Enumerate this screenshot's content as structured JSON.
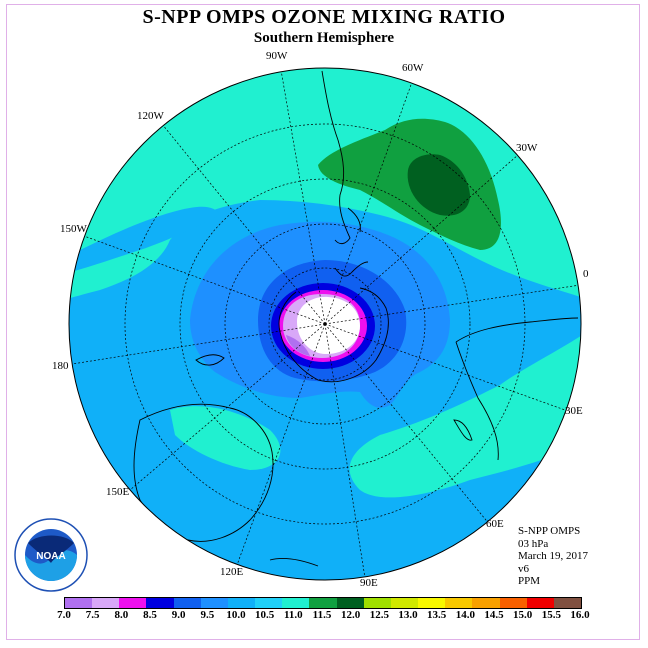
{
  "title": "S-NPP OMPS OZONE MIXING RATIO",
  "subtitle": "Southern Hemisphere",
  "longitude_labels": {
    "lon_90w": "90W",
    "lon_60w": "60W",
    "lon_30w": "30W",
    "lon_0": "0",
    "lon_30e": "30E",
    "lon_60e": "60E",
    "lon_90e": "90E",
    "lon_120e": "120E",
    "lon_150e": "150E",
    "lon_180": "180",
    "lon_150w": "150W",
    "lon_120w": "120W"
  },
  "info": {
    "instrument": "S-NPP OMPS",
    "pressure_level": "03 hPa",
    "date": "March 19, 2017",
    "version": "v6",
    "units": "PPM"
  },
  "logo_text": "NOAA",
  "colorbar": {
    "ticks": [
      "7.0",
      "7.5",
      "8.0",
      "8.5",
      "9.0",
      "9.5",
      "10.0",
      "10.5",
      "11.0",
      "11.5",
      "12.0",
      "12.5",
      "13.0",
      "13.5",
      "14.0",
      "14.5",
      "15.0",
      "15.5",
      "16.0"
    ],
    "colors": [
      "#b070f0",
      "#d8a8f8",
      "#ee10ee",
      "#0000e0",
      "#1060f0",
      "#1e90ff",
      "#10b0f8",
      "#20d0f8",
      "#20f0d0",
      "#10a040",
      "#006020",
      "#a0e000",
      "#d0e800",
      "#f8f800",
      "#f8c800",
      "#f8a000",
      "#f86000",
      "#f00000",
      "#805040"
    ]
  }
}
